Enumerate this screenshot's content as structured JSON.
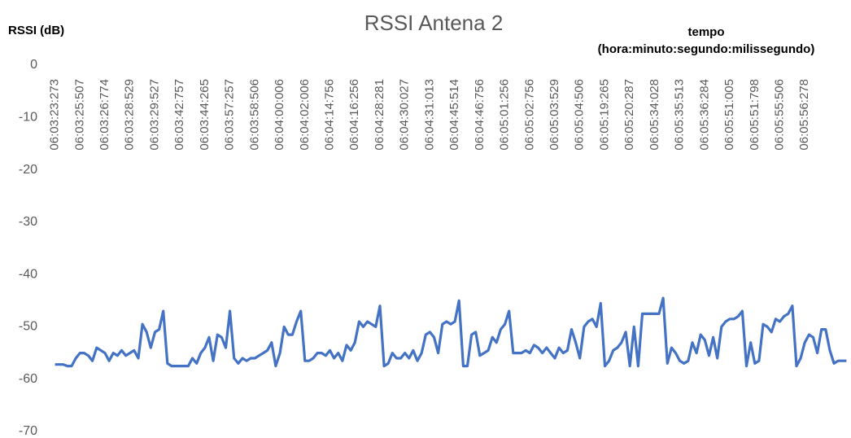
{
  "chart_data": {
    "type": "line",
    "title": "RSSI Antena 2",
    "y_label": "RSSI (dB)",
    "x_label": [
      "tempo",
      "(hora:minuto:segundo:milissegundo)"
    ],
    "ylim": [
      -70,
      0
    ],
    "yticks": [
      0,
      -10,
      -20,
      -30,
      -40,
      -50,
      -60,
      -70
    ],
    "grid": false,
    "categories": [
      "06:03:23:273",
      null,
      null,
      null,
      null,
      null,
      "06:03:25:507",
      null,
      null,
      null,
      null,
      null,
      "06:03:26:774",
      null,
      null,
      null,
      null,
      null,
      "06:03:28:529",
      null,
      null,
      null,
      null,
      null,
      "06:03:29:527",
      null,
      null,
      null,
      null,
      null,
      "06:03:42:757",
      null,
      null,
      null,
      null,
      null,
      "06:03:44:265",
      null,
      null,
      null,
      null,
      null,
      "06:03:57:257",
      null,
      null,
      null,
      null,
      null,
      "06:03:58:506",
      null,
      null,
      null,
      null,
      null,
      "06:04:00:006",
      null,
      null,
      null,
      null,
      null,
      "06:04:02:006",
      null,
      null,
      null,
      null,
      null,
      "06:04:14:756",
      null,
      null,
      null,
      null,
      null,
      "06:04:16:256",
      null,
      null,
      null,
      null,
      null,
      "06:04:28:281",
      null,
      null,
      null,
      null,
      null,
      "06:04:30:027",
      null,
      null,
      null,
      null,
      null,
      "06:04:31:013",
      null,
      null,
      null,
      null,
      null,
      "06:04:45:514",
      null,
      null,
      null,
      null,
      null,
      "06:04:46:756",
      null,
      null,
      null,
      null,
      null,
      "06:05:01:256",
      null,
      null,
      null,
      null,
      null,
      "06:05:02:756",
      null,
      null,
      null,
      null,
      null,
      "06:05:03:529",
      null,
      null,
      null,
      null,
      null,
      "06:05:04:506",
      null,
      null,
      null,
      null,
      null,
      "06:05:19:265",
      null,
      null,
      null,
      null,
      null,
      "06:05:20:287",
      null,
      null,
      null,
      null,
      null,
      "06:05:34:028",
      null,
      null,
      null,
      null,
      null,
      "06:05:35:513",
      null,
      null,
      null,
      null,
      null,
      "06:05:36:284",
      null,
      null,
      null,
      null,
      null,
      "06:05:51:005",
      null,
      null,
      null,
      null,
      null,
      "06:05:51:798",
      null,
      null,
      null,
      null,
      null,
      "06:05:55:506",
      null,
      null,
      null,
      null,
      null,
      "06:05:56:278",
      null,
      null,
      null,
      null,
      null,
      null,
      null,
      null,
      null,
      null
    ],
    "series": [
      {
        "name": "RSSI Antena 2",
        "color": "#4472c4",
        "values": [
          -57.2,
          -57.2,
          -57.2,
          -57.5,
          -57.5,
          -56,
          -55,
          -55,
          -55.5,
          -56.5,
          -54,
          -54.5,
          -55,
          -56.5,
          -55,
          -55.5,
          -54.5,
          -55.5,
          -55,
          -54.5,
          -56,
          -49.5,
          -51,
          -54,
          -51,
          -50.5,
          -47,
          -57,
          -57.5,
          -57.5,
          -57.5,
          -57.5,
          -57.5,
          -56,
          -57,
          -55,
          -54,
          -52,
          -56.5,
          -51.5,
          -52,
          -54,
          -47,
          -56,
          -57,
          -56,
          -56.5,
          -56,
          -56,
          -55.5,
          -55,
          -54.5,
          -53,
          -57.5,
          -55,
          -50,
          -51.5,
          -51.5,
          -49,
          -47,
          -56.5,
          -56.5,
          -56,
          -55,
          -55,
          -55.5,
          -54.5,
          -56,
          -55,
          -56.5,
          -53.5,
          -54.5,
          -53,
          -49,
          -50,
          -49,
          -49.5,
          -50,
          -46,
          -57.5,
          -57,
          -55,
          -56,
          -56,
          -55,
          -56,
          -54.5,
          -56.5,
          -55,
          -51.5,
          -51,
          -52,
          -55,
          -49.5,
          -49,
          -49.5,
          -49,
          -45,
          -57.5,
          -57.5,
          -51.5,
          -51,
          -55.5,
          -55,
          -54.5,
          -52,
          -53,
          -50.5,
          -49.5,
          -47,
          -55,
          -55,
          -55,
          -54.5,
          -55,
          -53.5,
          -54,
          -55,
          -54,
          -55,
          -56,
          -54,
          -55,
          -54.5,
          -50.5,
          -53,
          -56,
          -50,
          -49,
          -48.5,
          -50,
          -45.5,
          -57.5,
          -56.5,
          -54.5,
          -54,
          -53,
          -51,
          -57.5,
          -50,
          -57.5,
          -47.5,
          -47.5,
          -47.5,
          -47.5,
          -47.5,
          -44.5,
          -57,
          -54,
          -55,
          -56.5,
          -57,
          -56.5,
          -53,
          -55,
          -51.5,
          -52.5,
          -55.5,
          -52,
          -56,
          -50,
          -49,
          -48.5,
          -48.5,
          -48,
          -47,
          -57.5,
          -53,
          -57,
          -56.5,
          -49.5,
          -50,
          -51,
          -48.5,
          -49,
          -48,
          -47.5,
          -46,
          -57.5,
          -56,
          -53,
          -51.5,
          -52,
          -55,
          -50.5,
          -50.5,
          -54.5,
          -57,
          -56.5,
          -56.5,
          -56.5
        ]
      }
    ]
  }
}
